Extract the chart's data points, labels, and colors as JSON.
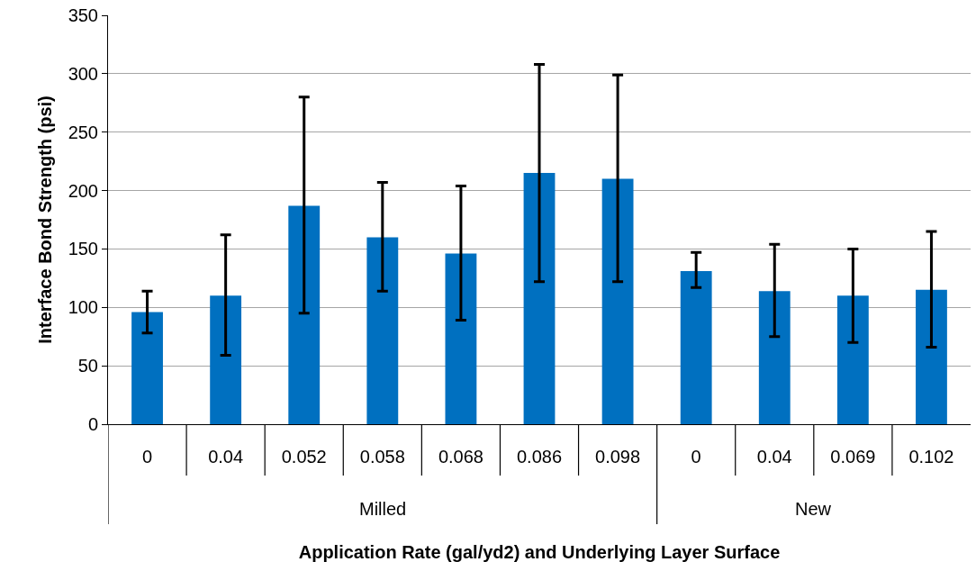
{
  "chart_data": {
    "type": "bar",
    "xlabel": "Application Rate (gal/yd2) and Underlying Layer Surface",
    "ylabel": "Interface Bond Strength (psi)",
    "categories": [
      "0",
      "0.04",
      "0.052",
      "0.058",
      "0.068",
      "0.086",
      "0.098",
      "0",
      "0.04",
      "0.069",
      "0.102"
    ],
    "values": [
      96,
      110,
      187,
      160,
      146,
      215,
      210,
      131,
      114,
      110,
      115
    ],
    "errors": [
      [
        78,
        114
      ],
      [
        59,
        162
      ],
      [
        95,
        280
      ],
      [
        114,
        207
      ],
      [
        89,
        204
      ],
      [
        122,
        308
      ],
      [
        122,
        299
      ],
      [
        117,
        147
      ],
      [
        75,
        154
      ],
      [
        70,
        150
      ],
      [
        66,
        165
      ]
    ],
    "color": "#0070c0",
    "annotations": [
      "Milled",
      "New"
    ],
    "ylim": [
      0,
      350
    ],
    "yticks": [
      0,
      50,
      100,
      150,
      200,
      250,
      300,
      350
    ],
    "grid": "y"
  }
}
